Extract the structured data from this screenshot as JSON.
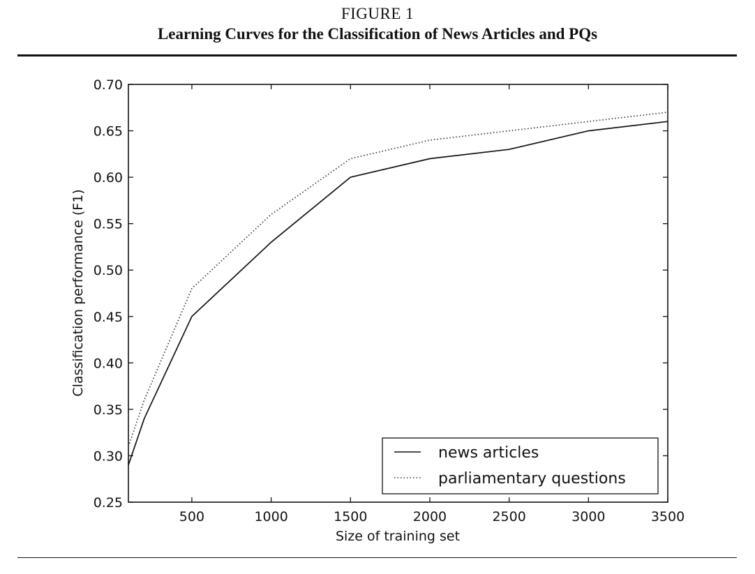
{
  "figure": {
    "number": "FIGURE 1",
    "title": "Learning Curves for the Classification of News Articles and PQs"
  },
  "chart_data": {
    "type": "line",
    "xlabel": "Size of training set",
    "ylabel": "Classification performance (F1)",
    "xlim": [
      100,
      3500
    ],
    "ylim": [
      0.25,
      0.7
    ],
    "xticks": [
      500,
      1000,
      1500,
      2000,
      2500,
      3000,
      3500
    ],
    "yticks": [
      0.25,
      0.3,
      0.35,
      0.4,
      0.45,
      0.5,
      0.55,
      0.6,
      0.65,
      0.7
    ],
    "ytick_labels": [
      "0.25",
      "0.30",
      "0.35",
      "0.40",
      "0.45",
      "0.50",
      "0.55",
      "0.60",
      "0.65",
      "0.70"
    ],
    "grid": false,
    "legend_position": "bottom-right",
    "series": [
      {
        "name": "news articles",
        "line_style": "solid",
        "color": "#111111",
        "x": [
          100,
          200,
          500,
          1000,
          1500,
          2000,
          2500,
          3000,
          3500
        ],
        "y": [
          0.29,
          0.34,
          0.45,
          0.53,
          0.6,
          0.62,
          0.63,
          0.65,
          0.66
        ]
      },
      {
        "name": "parliamentary questions",
        "line_style": "dotted",
        "color": "#333333",
        "x": [
          100,
          200,
          500,
          1000,
          1500,
          2000,
          2500,
          3000,
          3500
        ],
        "y": [
          0.31,
          0.36,
          0.48,
          0.56,
          0.62,
          0.64,
          0.65,
          0.66,
          0.67
        ]
      }
    ]
  }
}
